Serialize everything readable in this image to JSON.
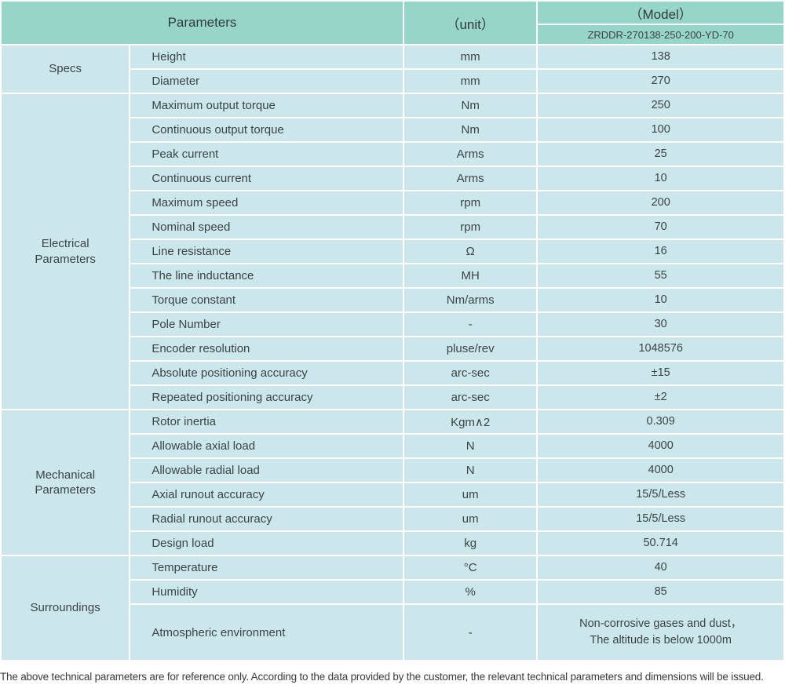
{
  "colors": {
    "header_bg": "#96d5c8",
    "cell_bg": "#cbe7ec",
    "grid_line": "#ffffff",
    "text": "#3c4346"
  },
  "table": {
    "header": {
      "parameters_label": "Parameters",
      "unit_label": "（unit）",
      "model_label": "（Model）",
      "model_value": "ZRDDR-270138-250-200-YD-70"
    },
    "groups": [
      {
        "name": "Specs",
        "rows": [
          {
            "parameter": "Height",
            "unit": "mm",
            "value": "138"
          },
          {
            "parameter": "Diameter",
            "unit": "mm",
            "value": "270"
          }
        ]
      },
      {
        "name": "Electrical\nParameters",
        "rows": [
          {
            "parameter": "Maximum output torque",
            "unit": "Nm",
            "value": "250"
          },
          {
            "parameter": "Continuous output torque",
            "unit": "Nm",
            "value": "100"
          },
          {
            "parameter": "Peak current",
            "unit": "Arms",
            "value": "25"
          },
          {
            "parameter": "Continuous current",
            "unit": "Arms",
            "value": "10"
          },
          {
            "parameter": "Maximum speed",
            "unit": "rpm",
            "value": "200"
          },
          {
            "parameter": "Nominal speed",
            "unit": "rpm",
            "value": "70"
          },
          {
            "parameter": "Line resistance",
            "unit": "Ω",
            "value": "16"
          },
          {
            "parameter": "The line inductance",
            "unit": "MH",
            "value": "55"
          },
          {
            "parameter": "Torque constant",
            "unit": "Nm/arms",
            "value": "10"
          },
          {
            "parameter": "Pole Number",
            "unit": "-",
            "value": "30"
          },
          {
            "parameter": "Encoder resolution",
            "unit": "pluse/rev",
            "value": "1048576"
          },
          {
            "parameter": "Absolute positioning accuracy",
            "unit": "arc-sec",
            "value": "±15"
          },
          {
            "parameter": "Repeated positioning accuracy",
            "unit": "arc-sec",
            "value": "±2"
          }
        ]
      },
      {
        "name": "Mechanical\nParameters",
        "rows": [
          {
            "parameter": "Rotor inertia",
            "unit": "Kgm∧2",
            "value": "0.309"
          },
          {
            "parameter": "Allowable axial load",
            "unit": "N",
            "value": "4000"
          },
          {
            "parameter": "Allowable radial load",
            "unit": "N",
            "value": "4000"
          },
          {
            "parameter": "Axial runout accuracy",
            "unit": "um",
            "value": "15/5/Less"
          },
          {
            "parameter": "Radial runout accuracy",
            "unit": "um",
            "value": "15/5/Less"
          },
          {
            "parameter": "Design load",
            "unit": "kg",
            "value": "50.714"
          }
        ]
      },
      {
        "name": "Surroundings",
        "rows": [
          {
            "parameter": "Temperature",
            "unit": "°C",
            "value": "40"
          },
          {
            "parameter": "Humidity",
            "unit": "%",
            "value": "85"
          },
          {
            "parameter": "Atmospheric environment",
            "unit": "-",
            "value": "Non-corrosive gases and dust，\nThe altitude is below 1000m"
          }
        ]
      }
    ]
  },
  "footnote": "The above technical parameters are for reference only. According to the data provided by the customer, the relevant technical parameters and dimensions will be issued."
}
